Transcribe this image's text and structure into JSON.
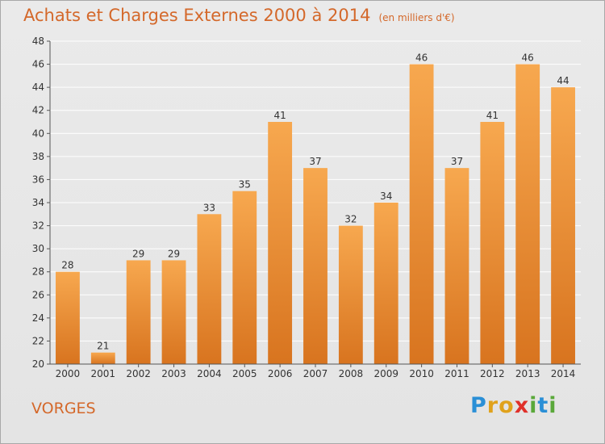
{
  "header": {
    "title": "Achats et Charges Externes 2000 à 2014",
    "subtitle": "(en milliers d'€)"
  },
  "location": "VORGES",
  "logo": {
    "letters": [
      {
        "char": "P",
        "color": "#2a8fd6"
      },
      {
        "char": "r",
        "color": "#e0a21c"
      },
      {
        "char": "o",
        "color": "#e0a21c"
      },
      {
        "char": "x",
        "color": "#e0302a"
      },
      {
        "char": "i",
        "color": "#5aa83a"
      },
      {
        "char": "t",
        "color": "#2a8fd6"
      },
      {
        "char": "i",
        "color": "#5aa83a"
      }
    ]
  },
  "colors": {
    "bar_light": "#f7a84f",
    "bar_dark": "#d8741f",
    "accent": "#d4682a",
    "grid": "#ffffff",
    "axis_text": "#333333"
  },
  "chart_data": {
    "type": "bar",
    "categories": [
      "2000",
      "2001",
      "2002",
      "2003",
      "2004",
      "2005",
      "2006",
      "2007",
      "2008",
      "2009",
      "2010",
      "2011",
      "2012",
      "2013",
      "2014"
    ],
    "values": [
      28,
      21,
      29,
      29,
      33,
      35,
      41,
      37,
      32,
      34,
      46,
      37,
      41,
      46,
      44
    ],
    "ylim": [
      20,
      48
    ],
    "yticks": [
      20,
      22,
      24,
      26,
      28,
      30,
      32,
      34,
      36,
      38,
      40,
      42,
      44,
      46,
      48
    ],
    "grid": true,
    "title": "Achats et Charges Externes 2000 à 2014",
    "xlabel": "",
    "ylabel": ""
  }
}
